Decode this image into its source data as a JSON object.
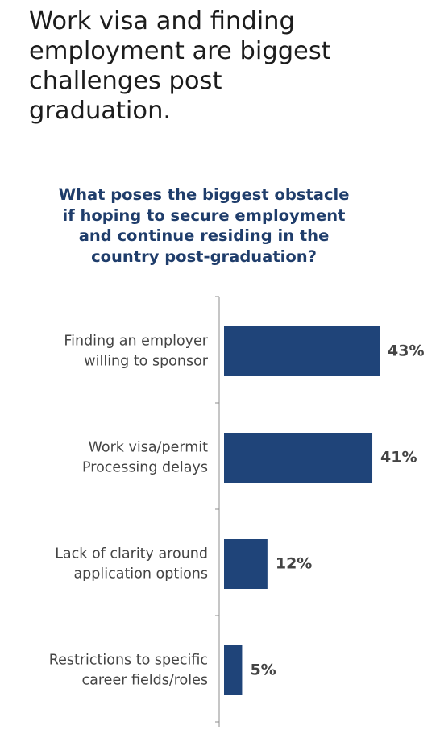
{
  "headline": "Work visa and finding\nemployment are biggest\nchallenges post\ngraduation.",
  "chart_data": {
    "type": "bar",
    "orientation": "horizontal",
    "title": "What poses the biggest obstacle\nif hoping to secure employment\nand continue residing in the\ncountry post-graduation?",
    "categories": [
      [
        "Finding an employer",
        "willing to sponsor"
      ],
      [
        "Work visa/permit",
        "Processing delays"
      ],
      [
        "Lack of clarity around",
        "application options"
      ],
      [
        "Restrictions to specific",
        "career fields/roles"
      ]
    ],
    "values": [
      43,
      41,
      12,
      5
    ],
    "data_labels": [
      "43%",
      "41%",
      "12%",
      "5%"
    ],
    "unit": "%",
    "xlim": [
      0,
      43
    ],
    "bar_color": "#1f4479",
    "label_color": "#444444",
    "grid": false,
    "legend": "none"
  }
}
